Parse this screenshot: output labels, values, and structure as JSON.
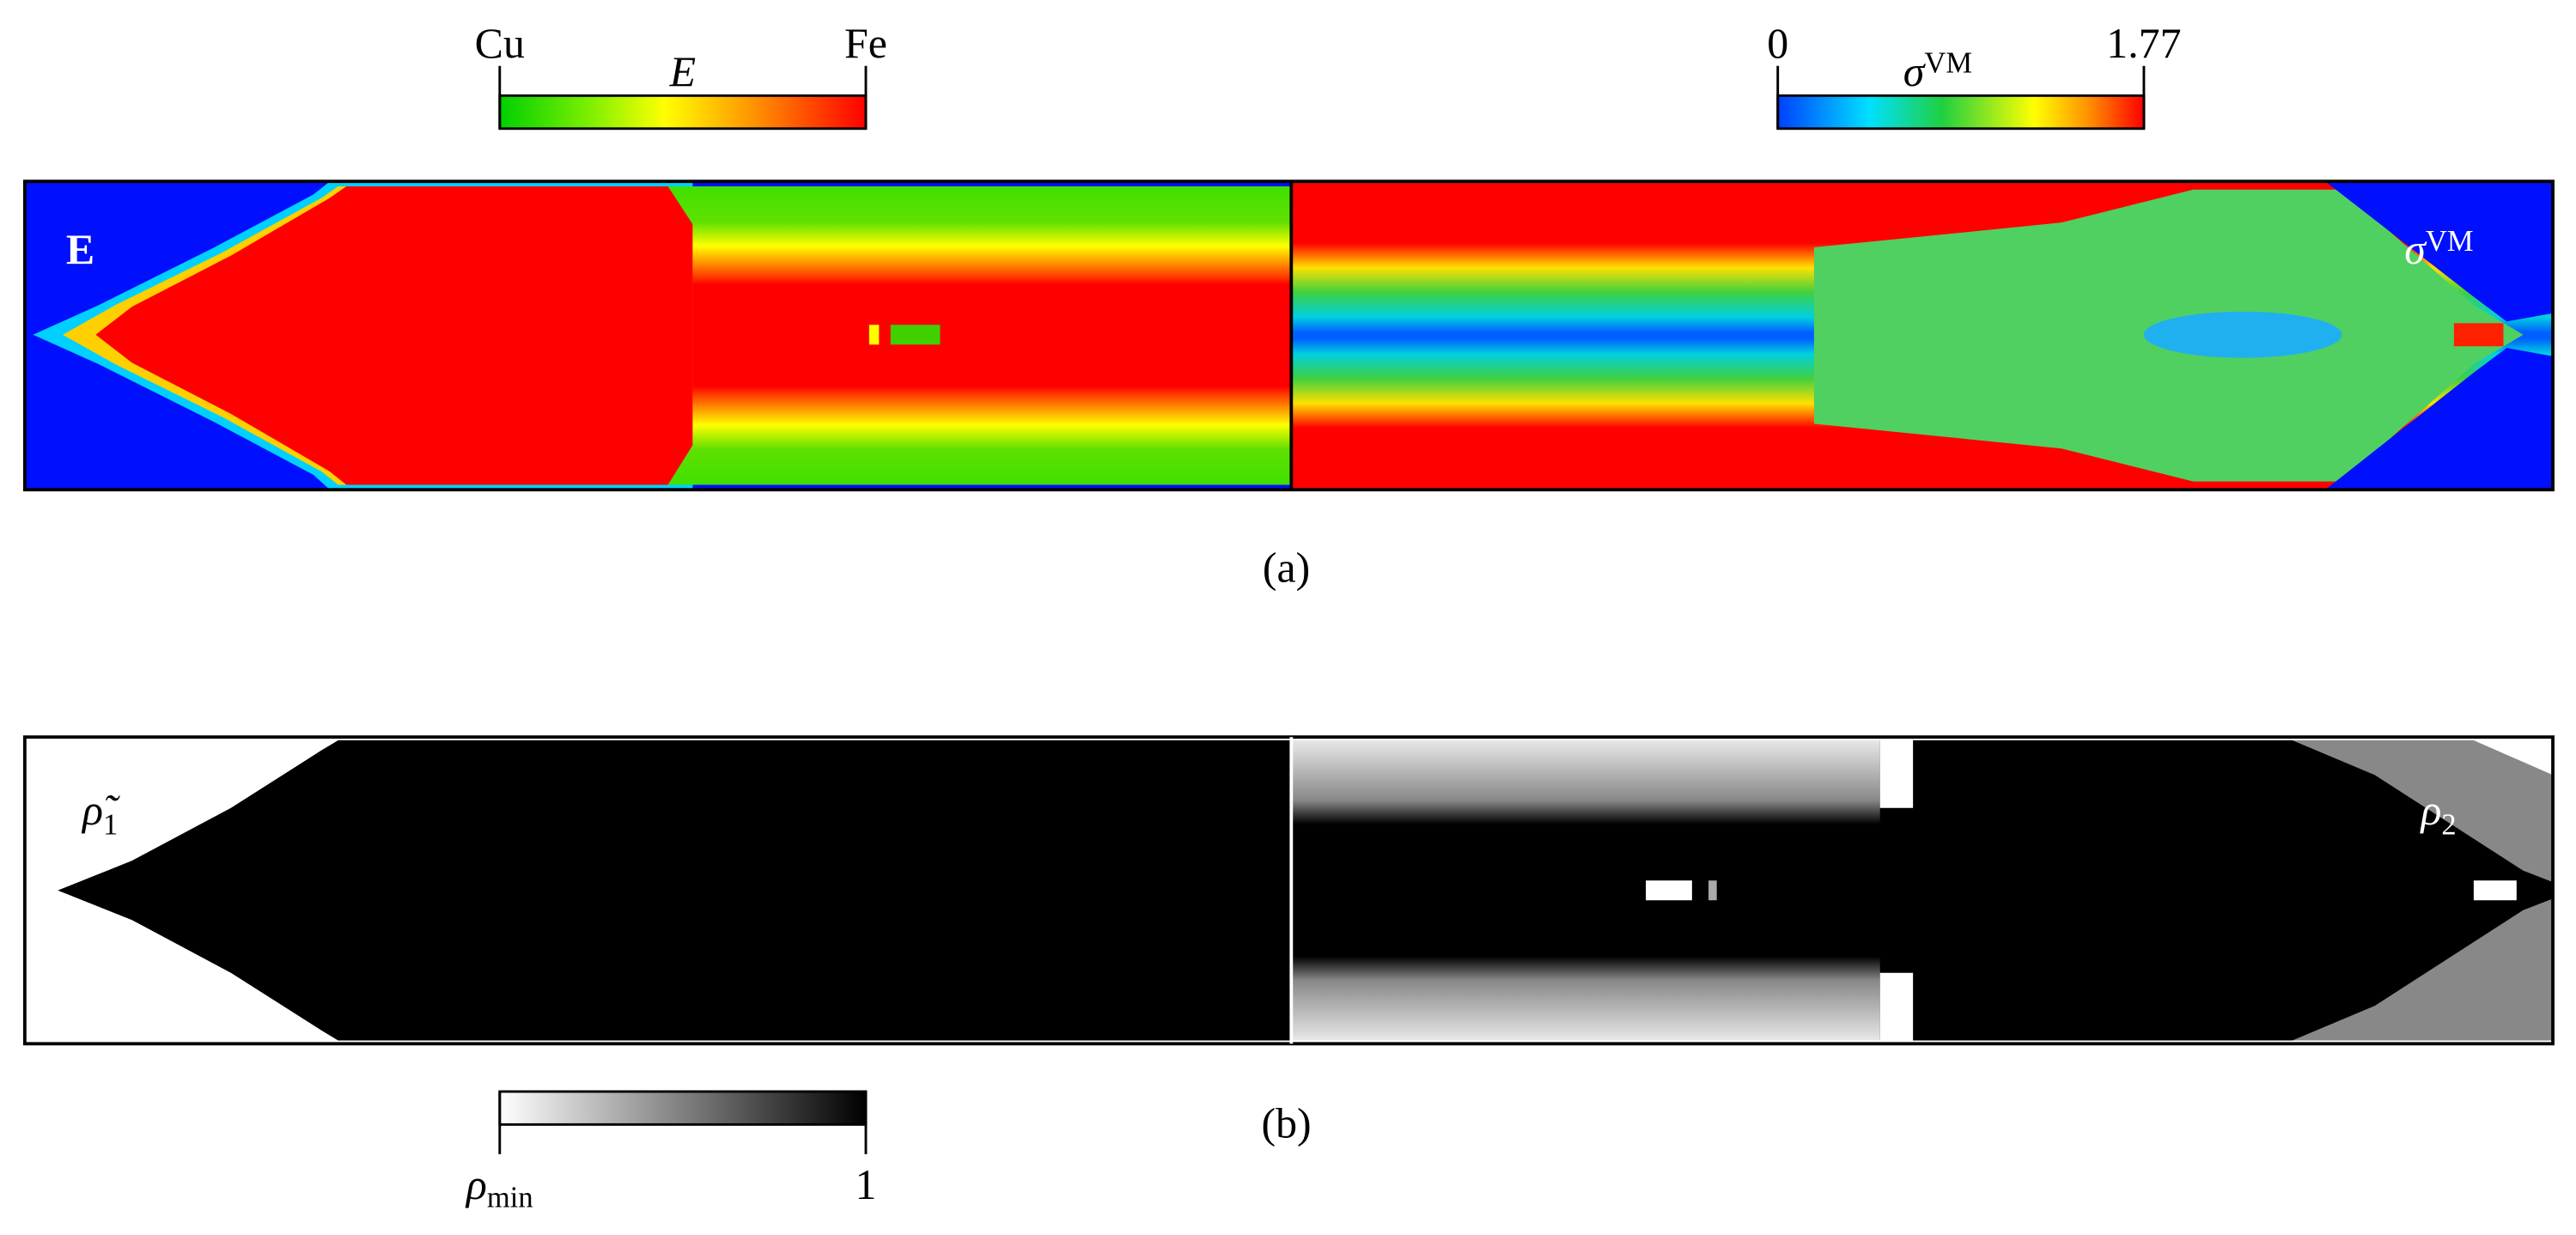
{
  "panel_a": {
    "colorbar_E": {
      "min_label": "Cu",
      "title": "E",
      "max_label": "Fe"
    },
    "colorbar_vm": {
      "min_label": "0",
      "title": "σ",
      "title_sup": "VM",
      "max_label": "1.77"
    },
    "left_label": "E",
    "right_label": "σ",
    "right_label_sup": "VM",
    "caption": "(a)"
  },
  "panel_b": {
    "left_label": "ρ̃",
    "left_label_sub": "1",
    "right_label": "ρ",
    "right_label_sub": "2",
    "caption": "(b)",
    "colorbar": {
      "min_label": "ρ",
      "min_label_sub": "min",
      "max_label": "1"
    }
  }
}
